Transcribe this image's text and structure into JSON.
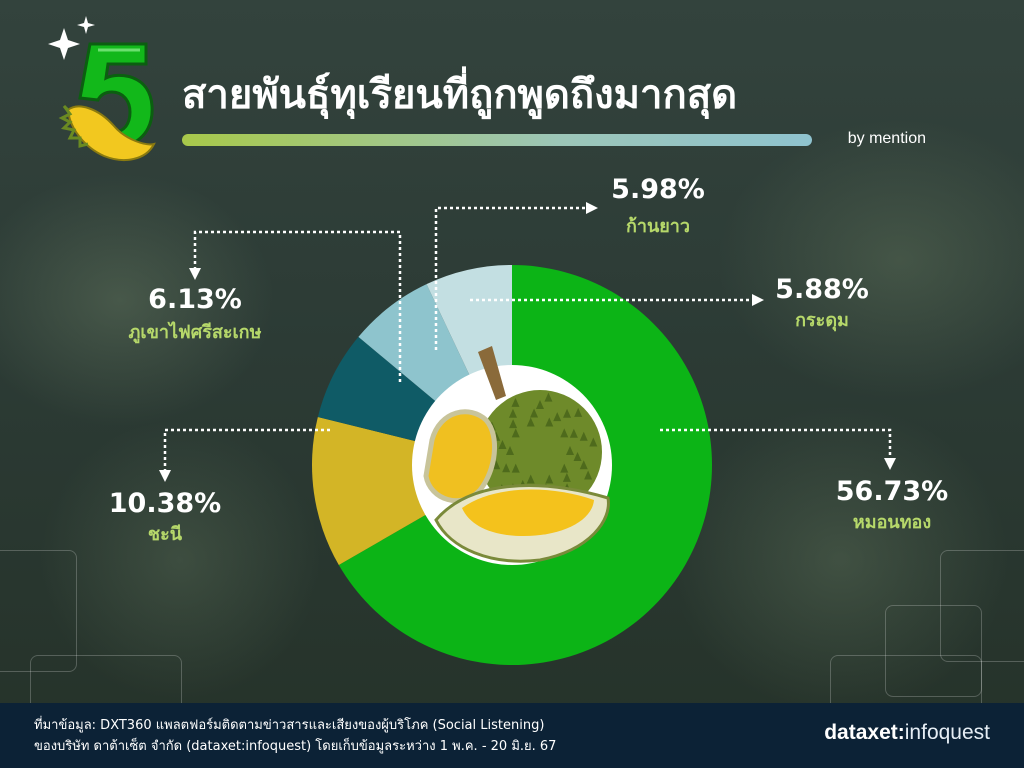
{
  "header": {
    "number": "5",
    "title": "สายพันธุ์ทุเรียนที่ถูกพูดถึงมากสุด",
    "byline": "by mention"
  },
  "colors": {
    "title_bar_start": "#a8c84a",
    "title_bar_end": "#8fc3cf",
    "footer_bg": "#0c2236",
    "label_green": "#b6d86a"
  },
  "icons": {
    "logo": "durian-number-five-icon",
    "sparkles": "sparkle-icon",
    "center": "durian-fruit-icon"
  },
  "chart_data": {
    "type": "pie",
    "style": "donut",
    "title": "สายพันธุ์ทุเรียนที่ถูกพูดถึงมากสุด",
    "subtitle": "by mention",
    "start_angle_deg": 0,
    "direction": "clockwise",
    "slices": [
      {
        "name": "หมอนทอง",
        "value": 56.73,
        "label": "56.73%",
        "color": "#0cb416"
      },
      {
        "name": "ชะนี",
        "value": 10.38,
        "label": "10.38%",
        "color": "#d3b526"
      },
      {
        "name": "ภูเขาไฟศรีสะเกษ",
        "value": 6.13,
        "label": "6.13%",
        "color": "#0f5b66"
      },
      {
        "name": "กระดุม",
        "value": 5.88,
        "label": "5.88%",
        "color": "#8ec4cd"
      },
      {
        "name": "ก้านยาว",
        "value": 5.98,
        "label": "5.98%",
        "color": "#c3dfe2"
      }
    ],
    "legend": "callouts"
  },
  "footer": {
    "source_line1": "ที่มาข้อมูล: DXT360 แพลตฟอร์มติดตามข่าวสารและเสียงของผู้บริโภค (Social Listening)",
    "source_line2": "ของบริษัท ดาต้าเซ็ต จำกัด (dataxet:infoquest) โดยเก็บข้อมูลระหว่าง 1 พ.ค. - 20 มิ.ย. 67",
    "brand_main": "dataxet",
    "brand_sep": ":",
    "brand_sub": "infoquest"
  }
}
